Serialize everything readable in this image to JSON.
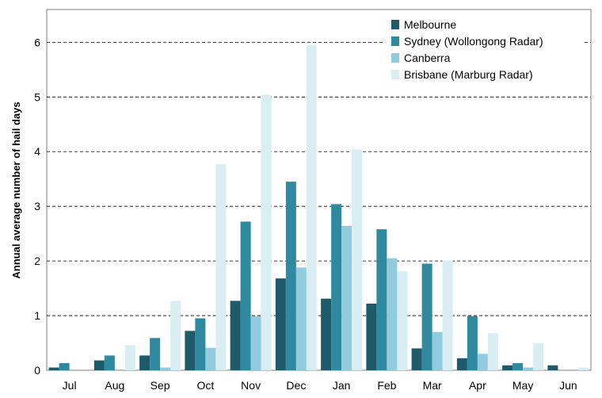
{
  "chart_data": {
    "type": "bar",
    "title": "",
    "xlabel": "",
    "ylabel": "Annual average number of hail days",
    "ylim": [
      0,
      6.6
    ],
    "yticks": [
      0,
      1,
      2,
      3,
      4,
      5,
      6
    ],
    "grid": "horizontal-dashed",
    "legend_position": "top-right",
    "categories": [
      "Jul",
      "Aug",
      "Sep",
      "Oct",
      "Nov",
      "Dec",
      "Jan",
      "Feb",
      "Mar",
      "Apr",
      "May",
      "Jun"
    ],
    "series": [
      {
        "name": "Melbourne",
        "color": "#1f5a6b",
        "values": [
          0.05,
          0.18,
          0.27,
          0.72,
          1.27,
          1.68,
          1.31,
          1.22,
          0.4,
          0.22,
          0.09,
          0.09
        ]
      },
      {
        "name": "Sydney (Wollongong Radar)",
        "color": "#2f8aa0",
        "values": [
          0.13,
          0.27,
          0.59,
          0.95,
          2.72,
          3.45,
          3.04,
          2.58,
          1.95,
          0.99,
          0.13,
          0.0
        ]
      },
      {
        "name": "Canberra",
        "color": "#92cbde",
        "values": [
          0.0,
          0.0,
          0.05,
          0.41,
          0.99,
          1.88,
          2.64,
          2.05,
          0.7,
          0.3,
          0.05,
          0.0
        ]
      },
      {
        "name": "Brisbane (Marburg Radar)",
        "color": "#d9eef3",
        "values": [
          0.0,
          0.46,
          1.27,
          3.77,
          5.04,
          5.95,
          4.04,
          1.81,
          2.01,
          0.68,
          0.5,
          0.05
        ]
      }
    ]
  }
}
